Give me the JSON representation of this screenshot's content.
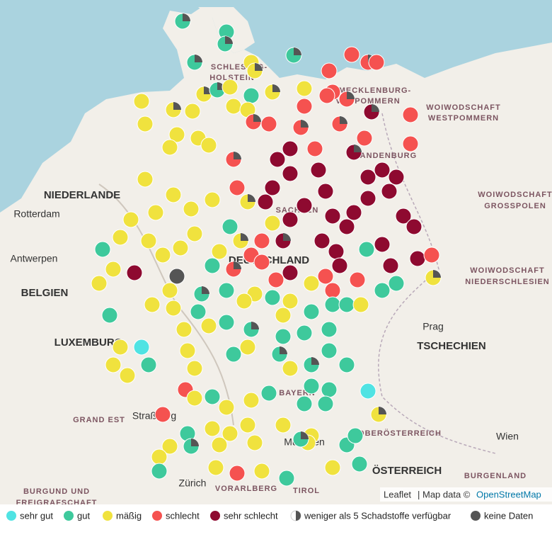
{
  "map": {
    "labels": [
      "NIEDERLANDE",
      "Rotterdam",
      "Antwerpen",
      "BELGIEN",
      "LUXEMBURG",
      "GRAND EST",
      "Straßburg",
      "BURGUND UND",
      "FREIGRAFSCHAFT",
      "Zürich",
      "VORARLBERG",
      "TIROL",
      "ÖSTERREICH",
      "BURGENLAND",
      "OBERÖSTERREICH",
      "Wien",
      "Prag",
      "TSCHECHIEN",
      "WOIWODSCHAFT",
      "WESTPOMMERN",
      "WOIWODSCHAFT",
      "GROSSPOLEN",
      "WOIWODSCHAFT",
      "NIEDERSCHLESIEN",
      "DEUTSCHLAND",
      "SCHLESWIG-",
      "HOLSTEIN",
      "MECKLENBURG-",
      "VORPOMMERN",
      "BRANDENBURG",
      "SACHSEN",
      "BAYERN",
      "München"
    ]
  },
  "attribution": {
    "leaflet": "Leaflet",
    "text": "| Map data ©",
    "osm": "OpenStreetMap"
  },
  "legend": [
    {
      "label": "sehr gut",
      "color": "#50e3e3"
    },
    {
      "label": "gut",
      "color": "#3ec99c"
    },
    {
      "label": "mäßig",
      "color": "#f0e23e"
    },
    {
      "label": "schlecht",
      "color": "#f55250"
    },
    {
      "label": "sehr schlecht",
      "color": "#8e0a30"
    },
    {
      "label": "weniger als 5 Schadstoffe verfügbar",
      "color": "#555555"
    },
    {
      "label": "keine Daten",
      "color": "#555555"
    }
  ]
}
